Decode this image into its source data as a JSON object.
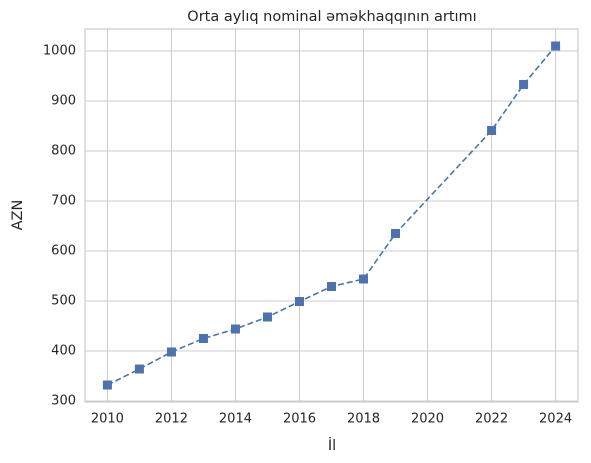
{
  "chart_data": {
    "type": "line",
    "title": "Orta aylıq nominal əməkhaqqının artımı",
    "x_label": "İl",
    "y_label": "AZN",
    "x": [
      2010,
      2011,
      2012,
      2013,
      2014,
      2015,
      2016,
      2017,
      2018,
      2019,
      2022,
      2023,
      2024
    ],
    "series": [
      {
        "name": "AZN",
        "color": "#4c72b0",
        "values": [
          332,
          364,
          398,
          425,
          444,
          468,
          499,
          529,
          544,
          635,
          841,
          933,
          1010
        ]
      }
    ],
    "xlim": [
      2009.3,
      2024.7
    ],
    "xticks": [
      2010,
      2012,
      2014,
      2016,
      2018,
      2020,
      2022,
      2024
    ],
    "ylim": [
      298,
      1044
    ],
    "yticks": [
      300,
      400,
      500,
      600,
      700,
      800,
      900,
      1000
    ],
    "grid": true,
    "line_style": "dashed",
    "marker": "square"
  }
}
